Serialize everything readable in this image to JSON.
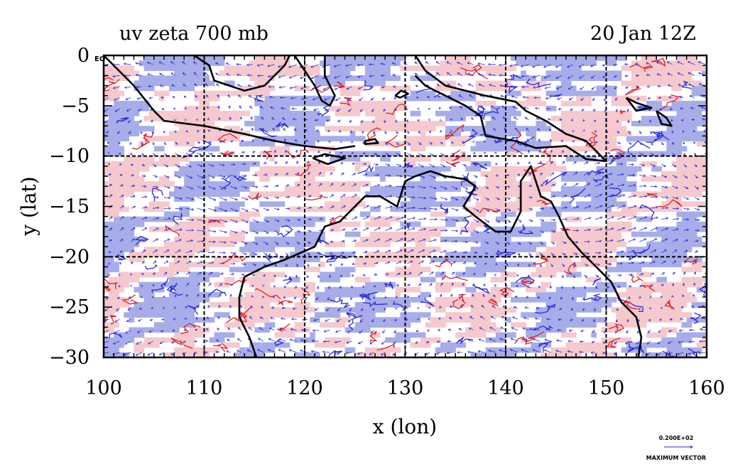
{
  "chart_data": {
    "type": "heatmap",
    "title_left": "uv zeta 700 mb",
    "title_right": "20 Jan 12Z",
    "xlabel": "x (lon)",
    "ylabel": "y (lat)",
    "xlim": [
      100,
      160
    ],
    "ylim": [
      -30,
      0
    ],
    "x_ticks": [
      100,
      110,
      120,
      130,
      140,
      150,
      160
    ],
    "y_ticks": [
      0,
      -5,
      -10,
      -15,
      -20,
      -25,
      -30
    ],
    "y_tick_labels": [
      "0",
      "−5",
      "−10",
      "−15",
      "−20",
      "−25",
      "−30"
    ],
    "x_tick_labels": [
      "100",
      "110",
      "120",
      "130",
      "140",
      "150",
      "160"
    ],
    "grid": true,
    "gridlines_x": [
      110,
      120,
      130,
      140,
      150
    ],
    "gridlines_y": [
      -10,
      -20
    ],
    "colors": {
      "positive_fill": "#f5c9cd",
      "negative_fill": "#a7ade9",
      "positive_contour": "#e0202a",
      "negative_contour": "#2a2ad8",
      "vector": "#2a2ad8",
      "coastline": "#000000"
    },
    "annotations": {
      "eq_label": "EQ",
      "reference_vector_value": "0.200E+02",
      "reference_vector_caption": "MAXIMUM VECTOR"
    }
  }
}
